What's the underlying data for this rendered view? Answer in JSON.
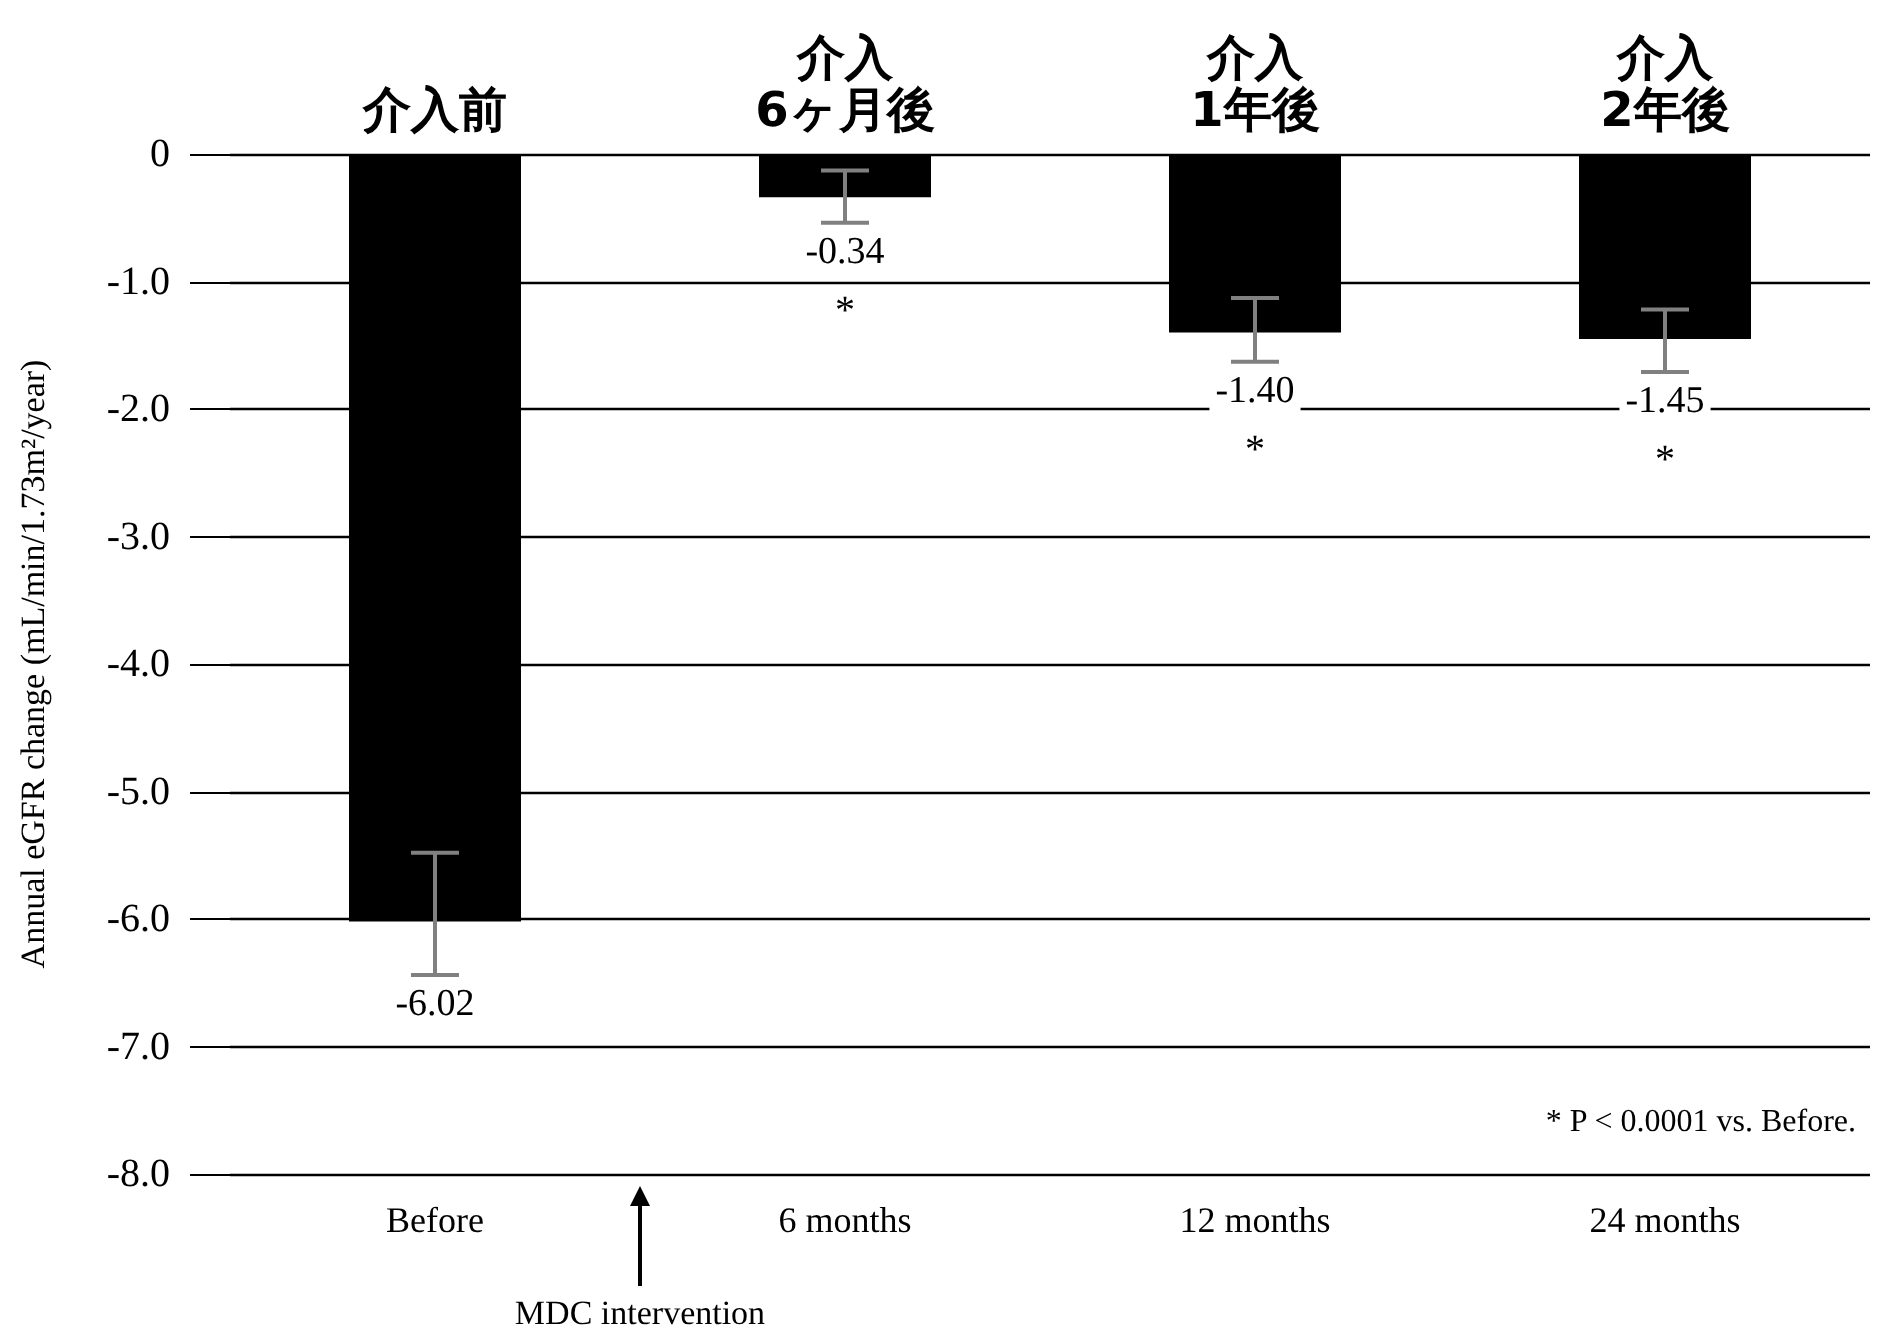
{
  "chart_data": {
    "type": "bar",
    "ylabel": "Annual eGFR change (mL/min/1.73m²/year)",
    "categories": [
      "Before",
      "6 months",
      "12 months",
      "24 months"
    ],
    "values": [
      -6.02,
      -0.34,
      -1.4,
      -1.45
    ],
    "color": "#000000",
    "errors": [
      [
        -6.44,
        -5.48
      ],
      [
        -0.54,
        -0.13
      ],
      [
        -1.63,
        -1.13
      ],
      [
        -1.71,
        -1.22
      ]
    ],
    "value_labels": [
      "-6.02",
      "-0.34",
      "-1.40",
      "-1.45"
    ],
    "ylim": [
      -8,
      0
    ],
    "yticks": [
      {
        "value": -8,
        "label": "-8.0"
      },
      {
        "value": -7,
        "label": "-7.0"
      },
      {
        "value": -6,
        "label": "-6.0"
      },
      {
        "value": -5,
        "label": "-5.0"
      },
      {
        "value": -4,
        "label": "-4.0"
      },
      {
        "value": -3,
        "label": "-3.0"
      },
      {
        "value": -2,
        "label": "-2.0"
      },
      {
        "value": -1,
        "label": "-1.0"
      },
      0
    ],
    "grid": "y",
    "annotations": [
      "介入前",
      "介入\n6ヶ月後",
      "介入\n1年後",
      "介入\n2年後",
      "*",
      "*",
      "*",
      "* P < 0.0001 vs. Before.",
      "MDC intervention"
    ]
  }
}
